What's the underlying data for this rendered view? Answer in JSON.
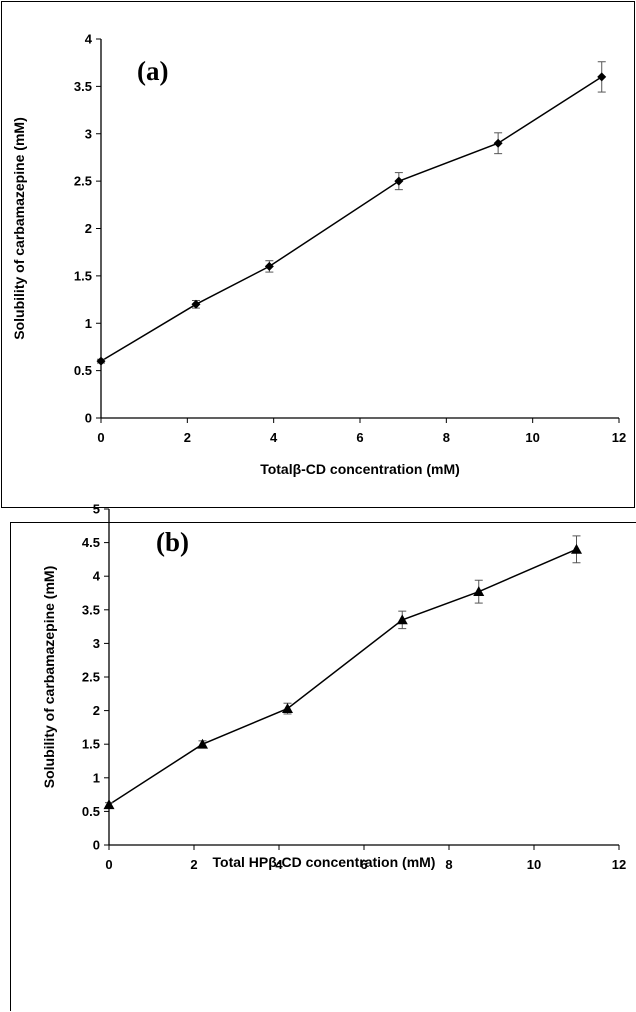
{
  "chart_data": [
    {
      "type": "line",
      "panel_label": "(a)",
      "xlabel": "Totalβ-CD concentration (mM)",
      "ylabel": "Solubility of carbamazepine (mM)",
      "xlim": [
        0,
        12
      ],
      "ylim": [
        0,
        4
      ],
      "xticks": [
        "0",
        "2",
        "4",
        "6",
        "8",
        "10",
        "12"
      ],
      "yticks": [
        "0",
        "0.5",
        "1",
        "1.5",
        "2",
        "2.5",
        "3",
        "3.5",
        "4"
      ],
      "marker": "diamond",
      "color": "#000000",
      "grid": false,
      "series": [
        {
          "x": [
            0,
            2.2,
            3.9,
            6.9,
            9.2,
            11.6
          ],
          "y": [
            0.6,
            1.2,
            1.6,
            2.5,
            2.9,
            3.6
          ],
          "error": [
            0.02,
            0.04,
            0.06,
            0.09,
            0.11,
            0.16
          ]
        }
      ]
    },
    {
      "type": "line",
      "panel_label": "(b)",
      "xlabel": "Total HPβ-CD concentration (mM)",
      "ylabel": "Solubility of carbamazepine (mM)",
      "xlim": [
        0,
        12
      ],
      "ylim": [
        0,
        5
      ],
      "xticks": [
        "0",
        "2",
        "4",
        "6",
        "8",
        "10",
        "12"
      ],
      "yticks": [
        "0",
        "0.5",
        "1",
        "1.5",
        "2",
        "2.5",
        "3",
        "3.5",
        "4",
        "4.5",
        "5"
      ],
      "marker": "triangle",
      "color": "#000000",
      "grid": false,
      "series": [
        {
          "x": [
            0,
            2.2,
            4.2,
            6.9,
            8.7,
            11.0
          ],
          "y": [
            0.6,
            1.5,
            2.03,
            3.35,
            3.77,
            4.4
          ],
          "error": [
            0.03,
            0.05,
            0.08,
            0.13,
            0.17,
            0.2
          ]
        }
      ]
    }
  ]
}
